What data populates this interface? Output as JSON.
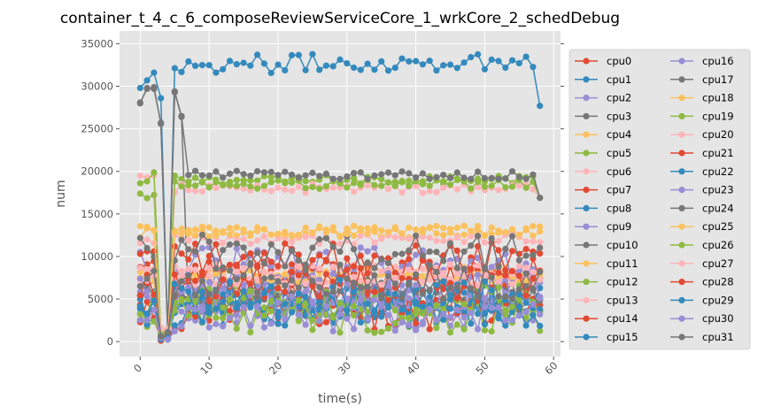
{
  "chart_data": {
    "type": "line",
    "title": "container_t_4_c_6_composeReviewServiceCore_1_wrkCore_2_schedDebug",
    "xlabel": "time(s)",
    "ylabel": "num",
    "xlim": [
      -3,
      61
    ],
    "ylim": [
      -1750,
      36500
    ],
    "xticks": [
      "0",
      "10",
      "20",
      "30",
      "40",
      "50",
      "60"
    ],
    "yticks": [
      "0",
      "5000",
      "10000",
      "15000",
      "20000",
      "25000",
      "30000",
      "35000"
    ],
    "grid": true,
    "legend_position": "right",
    "legend_columns": 2,
    "marker": "circle",
    "colors": [
      "#E24A33",
      "#348ABD",
      "#988ED5",
      "#777777",
      "#FBC15E",
      "#8EBA42",
      "#FFB5B8"
    ],
    "series": [
      {
        "name": "cpu0",
        "profile": "low",
        "level": 5400
      },
      {
        "name": "cpu1",
        "profile": "top",
        "level": 32500
      },
      {
        "name": "cpu2",
        "profile": "low",
        "level": 3800
      },
      {
        "name": "cpu3",
        "profile": "low",
        "level": 5000
      },
      {
        "name": "cpu4",
        "profile": "mid",
        "level": 8200
      },
      {
        "name": "cpu5",
        "profile": "high",
        "level": 19000
      },
      {
        "name": "cpu6",
        "profile": "high",
        "level": 18000
      },
      {
        "name": "cpu7",
        "profile": "low",
        "level": 7800
      },
      {
        "name": "cpu8",
        "profile": "low",
        "level": 4200
      },
      {
        "name": "cpu9",
        "profile": "low",
        "level": 9000
      },
      {
        "name": "cpu10",
        "profile": "low",
        "level": 5600
      },
      {
        "name": "cpu11",
        "profile": "mid",
        "level": 12800
      },
      {
        "name": "cpu12",
        "profile": "high",
        "level": 18500
      },
      {
        "name": "cpu13",
        "profile": "mid",
        "level": 12000
      },
      {
        "name": "cpu14",
        "profile": "low",
        "level": 3500
      },
      {
        "name": "cpu15",
        "profile": "low",
        "level": 4800
      },
      {
        "name": "cpu16",
        "profile": "low",
        "level": 6500
      },
      {
        "name": "cpu17",
        "profile": "high",
        "level": 19600
      },
      {
        "name": "cpu18",
        "profile": "mid",
        "level": 7500
      },
      {
        "name": "cpu19",
        "profile": "low",
        "level": 3000
      },
      {
        "name": "cpu20",
        "profile": "mid",
        "level": 8500
      },
      {
        "name": "cpu21",
        "profile": "low",
        "level": 9500
      },
      {
        "name": "cpu22",
        "profile": "low",
        "level": 3900
      },
      {
        "name": "cpu23",
        "profile": "low",
        "level": 6000
      },
      {
        "name": "cpu24",
        "profile": "low",
        "level": 10500
      },
      {
        "name": "cpu25",
        "profile": "mid",
        "level": 13000
      },
      {
        "name": "cpu26",
        "profile": "low",
        "level": 4500
      },
      {
        "name": "cpu27",
        "profile": "mid",
        "level": 7200
      },
      {
        "name": "cpu28",
        "profile": "low",
        "level": 6800
      },
      {
        "name": "cpu29",
        "profile": "low",
        "level": 5200
      },
      {
        "name": "cpu30",
        "profile": "low",
        "level": 3300
      },
      {
        "name": "cpu31",
        "profile": "low",
        "level": 7000
      }
    ]
  }
}
